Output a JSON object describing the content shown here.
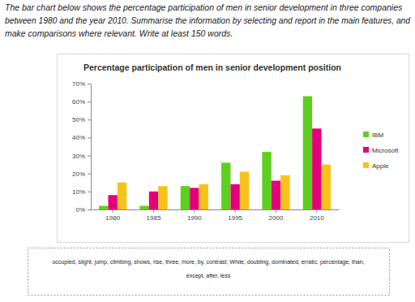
{
  "task": {
    "lines": [
      "The bar chart below shows the percentage participation of men in senior development in three companies",
      "between 1980 and the year 2010. Summarise the information by selecting and report in the main features, and",
      "make comparisons where relevant. Write at least 150 words."
    ]
  },
  "chart_data": {
    "type": "bar",
    "title": "Percentage participation of men in senior development position",
    "categories": [
      "1980",
      "1985",
      "1990",
      "1995",
      "2000",
      "2010"
    ],
    "series": [
      {
        "name": "IBM",
        "color": "#5fcf1f",
        "values": [
          2,
          2,
          13,
          26,
          32,
          63
        ]
      },
      {
        "name": "Microsoft",
        "color": "#e3007b",
        "values": [
          8,
          10,
          12,
          14,
          16,
          45
        ]
      },
      {
        "name": "Apple",
        "color": "#f7c21b",
        "values": [
          15,
          13,
          14,
          21,
          19,
          25
        ]
      }
    ],
    "ylim": [
      0,
      70
    ],
    "yticks": [
      {
        "value": 0,
        "label": "0%"
      },
      {
        "value": 10,
        "label": "10%"
      },
      {
        "value": 20,
        "label": "20%"
      },
      {
        "value": 30,
        "label": "30%"
      },
      {
        "value": 40,
        "label": "40%"
      },
      {
        "value": 50,
        "label": "50%"
      },
      {
        "value": 60,
        "label": "60%"
      },
      {
        "value": 70,
        "label": "70%"
      }
    ],
    "grid": false,
    "legend": "right"
  },
  "word_bank": {
    "lines": [
      "occupied, slight, jump, climbing, shows, rise, three, more, by, contrast, While, doubling, dominated, erratic, percentage, than,",
      "except, after, less"
    ]
  }
}
